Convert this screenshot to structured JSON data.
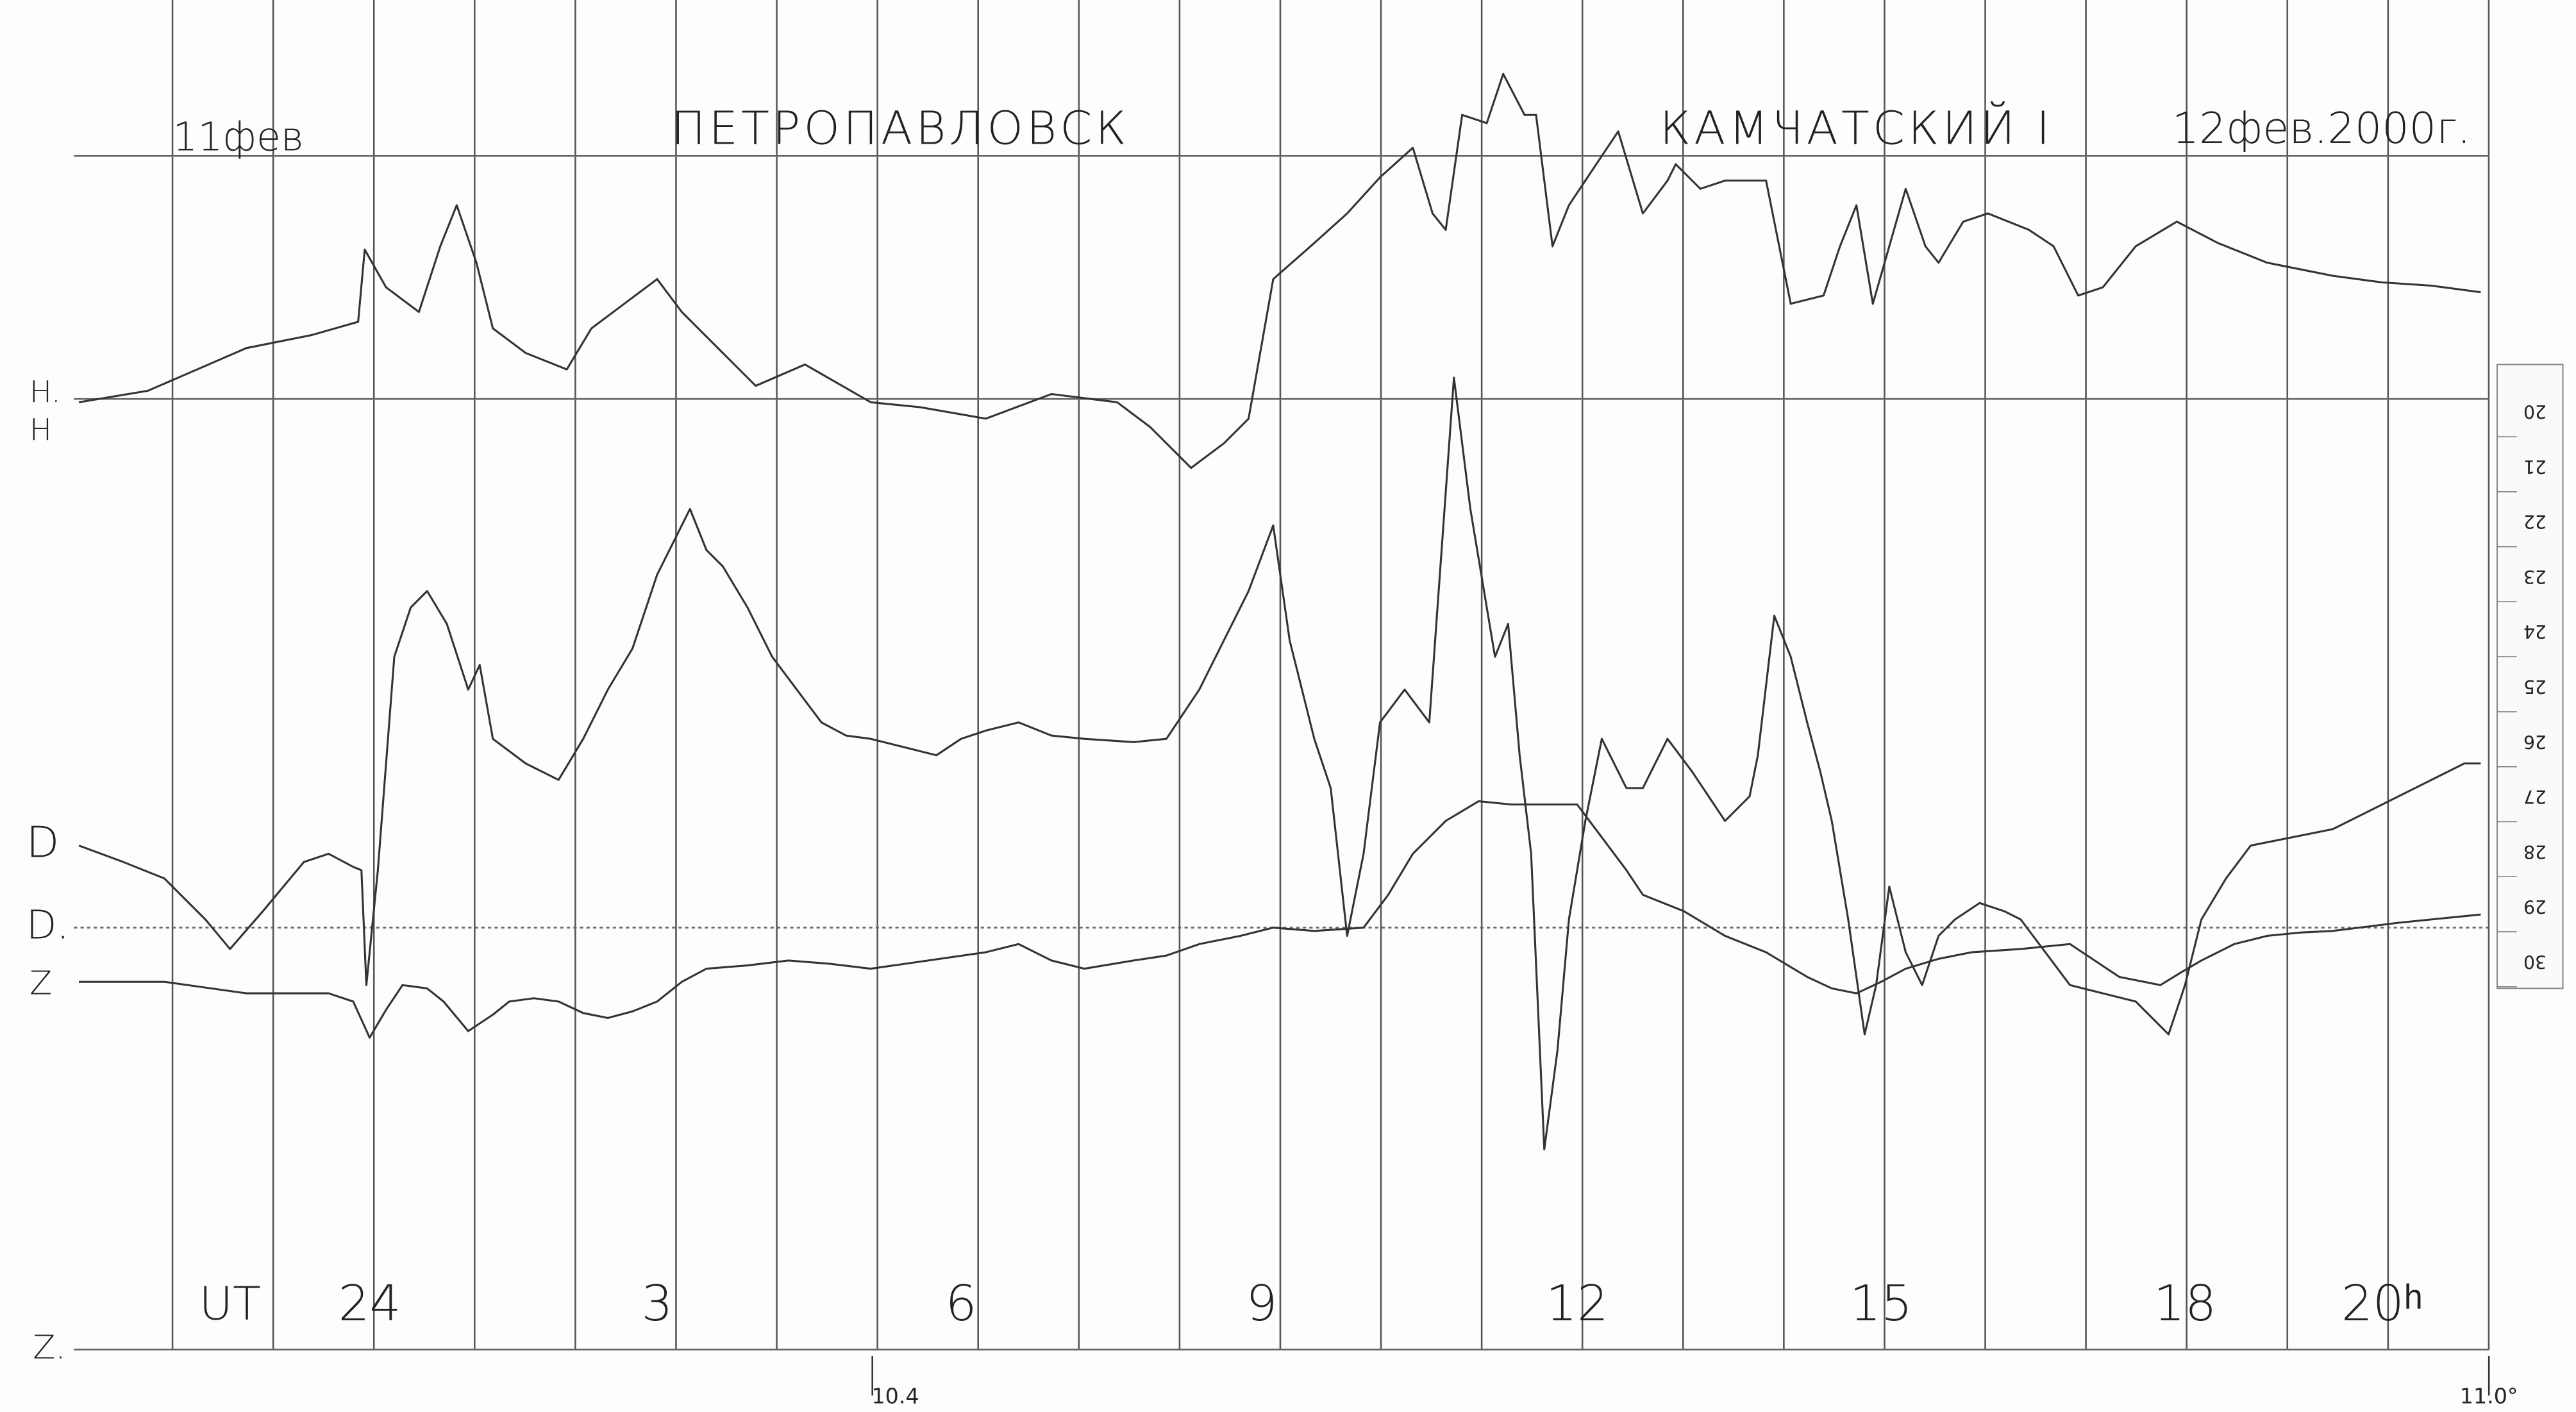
{
  "header": {
    "date_start": "11фев",
    "station_1": "ПЕТРОПАВЛОВСК",
    "station_2": "КАМЧАТСКИЙ I",
    "date_end": "12фев.2000г."
  },
  "traces": {
    "h_base": "H.",
    "h": "H",
    "d": "D",
    "d_base": "D.",
    "z": "Z",
    "z_base": "Z."
  },
  "time_axis": {
    "unit": "UT",
    "hours": [
      "24",
      "3",
      "6",
      "9",
      "12",
      "15",
      "18",
      "20ʰ"
    ]
  },
  "markers": [
    "10.4",
    "11.0°"
  ],
  "scale": [
    "20",
    "21",
    "22",
    "23",
    "24",
    "25",
    "26",
    "27",
    "28",
    "29",
    "30"
  ]
}
